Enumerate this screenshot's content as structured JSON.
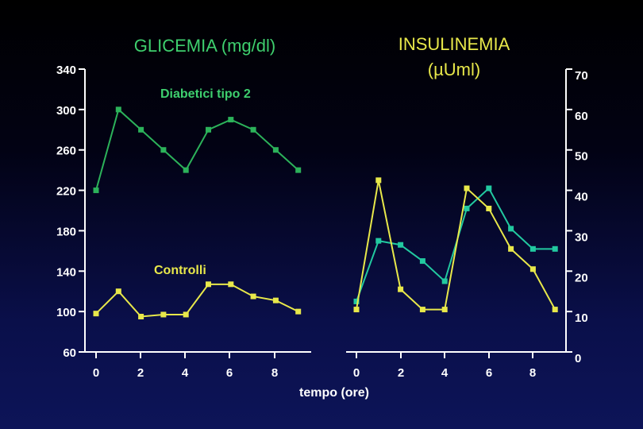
{
  "chart_data": [
    {
      "type": "line",
      "title": "GLICEMIA (mg/dl)",
      "xlabel": "",
      "ylabel": "",
      "ylim": [
        60,
        340
      ],
      "yticks": [
        "340",
        "300",
        "260",
        "220",
        "180",
        "140",
        "100",
        "60"
      ],
      "xticks": [
        "0",
        "2",
        "4",
        "6",
        "8"
      ],
      "xlim": [
        0,
        9
      ],
      "series": [
        {
          "name": "Diabetici tipo 2",
          "color": "#2cb25a",
          "x": [
            0,
            1,
            2,
            3,
            4,
            5,
            6,
            7,
            8,
            9
          ],
          "values": [
            220,
            300,
            280,
            260,
            240,
            280,
            290,
            280,
            260,
            240
          ]
        },
        {
          "name": "Controlli",
          "color": "#e8e84a",
          "x": [
            0,
            1,
            2,
            3,
            4,
            5,
            6,
            7,
            8,
            9
          ],
          "values": [
            98,
            120,
            95,
            97,
            97,
            127,
            127,
            115,
            111,
            100
          ]
        }
      ]
    },
    {
      "type": "line",
      "title": "INSULINEMIA (µUml)",
      "title_lines": [
        "INSULINEMIA",
        "(µUml)"
      ],
      "xlabel": "tempo (ore)",
      "ylabel": "",
      "ylim": [
        0,
        70
      ],
      "yticks": [
        "70",
        "60",
        "50",
        "40",
        "30",
        "20",
        "10",
        "0"
      ],
      "xticks": [
        "0",
        "2",
        "4",
        "6",
        "8"
      ],
      "xlim": [
        0,
        9
      ],
      "series": [
        {
          "name": "Diabetici tipo 2",
          "color": "#22c9a0",
          "x": [
            0,
            1,
            2,
            3,
            4,
            5,
            6,
            7,
            8,
            9
          ],
          "values": [
            12.5,
            27.5,
            26.5,
            22.5,
            17.5,
            35.5,
            40.5,
            30.5,
            25.5,
            25.5
          ]
        },
        {
          "name": "Controlli",
          "color": "#e8e84a",
          "x": [
            0,
            1,
            2,
            3,
            4,
            5,
            6,
            7,
            8,
            9
          ],
          "values": [
            10.5,
            42.5,
            15.5,
            10.5,
            10.5,
            40.5,
            35.5,
            25.5,
            20.5,
            10.5
          ]
        }
      ]
    }
  ],
  "labels": {
    "diabetici": "Diabetici tipo 2",
    "controlli": "Controlli"
  }
}
